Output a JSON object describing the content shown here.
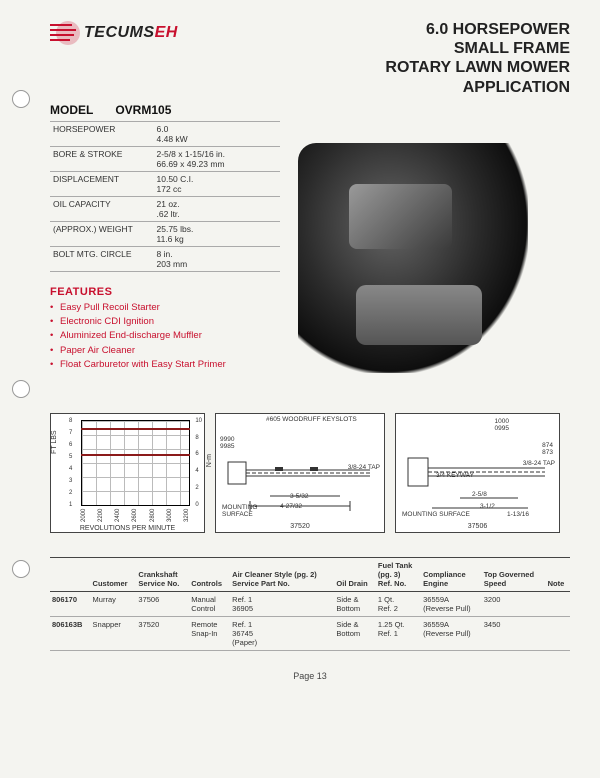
{
  "brand": {
    "name_black": "TECUMS",
    "name_red": "EH",
    "logo_color": "#c8102e"
  },
  "title": {
    "line1": "6.0 HORSEPOWER",
    "line2": "SMALL FRAME",
    "line3": "ROTARY LAWN MOWER",
    "line4": "APPLICATION"
  },
  "model": {
    "label": "MODEL",
    "value": "OVRM105"
  },
  "spec_table": {
    "rows": [
      {
        "label": "HORSEPOWER",
        "v1": "6.0",
        "v2": "4.48 kW"
      },
      {
        "label": "BORE & STROKE",
        "v1": "2-5/8 x 1-15/16 in.",
        "v2": "66.69 x 49.23 mm"
      },
      {
        "label": "DISPLACEMENT",
        "v1": "10.50 C.I.",
        "v2": "172 cc"
      },
      {
        "label": "OIL CAPACITY",
        "v1": "21 oz.",
        "v2": ".62 ltr."
      },
      {
        "label": "(APPROX.) WEIGHT",
        "v1": "25.75 lbs.",
        "v2": "11.6 kg"
      },
      {
        "label": "BOLT MTG. CIRCLE",
        "v1": "8 in.",
        "v2": "203 mm"
      }
    ]
  },
  "features": {
    "heading": "FEATURES",
    "items": [
      "Easy Pull Recoil Starter",
      "Electronic CDI Ignition",
      "Aluminized End-discharge Muffler",
      "Paper Air Cleaner",
      "Float Carburetor with Easy Start Primer"
    ],
    "color": "#c8102e"
  },
  "chart": {
    "type": "line",
    "y_left_label": "FT LBS",
    "y_right_label": "N-m",
    "x_label": "REVOLUTIONS PER MINUTE",
    "x_ticks": [
      "2000",
      "2200",
      "2400",
      "2600",
      "2800",
      "3000",
      "3200"
    ],
    "y_left_ticks": [
      "8",
      "7",
      "6",
      "5",
      "4",
      "3",
      "2",
      "1"
    ],
    "y_right_ticks": [
      "10",
      "8",
      "6",
      "4",
      "2",
      "0"
    ],
    "line_color": "#8b1a1a",
    "grid_color": "#bbbbbb",
    "background_color": "#ffffff",
    "xlim": [
      2000,
      3200
    ],
    "ylim_left": [
      1,
      8
    ],
    "ylim_right": [
      0,
      10
    ]
  },
  "shaft_diagram_1": {
    "part_no": "37520",
    "labels": {
      "keyslot": "#605 WOODRUFF KEYSLOTS",
      "diam": "9990\n9985",
      "tap": "3/8-24 TAP",
      "len1": "4-27/32",
      "len2": "3-5/32",
      "mount": "MOUNTING\nSURFACE"
    }
  },
  "shaft_diagram_2": {
    "part_no": "37506",
    "labels": {
      "diam": "1000\n0995",
      "d1": "874\n873",
      "tap": "3/8-24 TAP",
      "note": "3/4 KEYWAY",
      "len1": "2-5/8",
      "len2": "3-1/2",
      "len3": "1-13/16",
      "mount": "MOUNTING SURFACE"
    }
  },
  "apps_table": {
    "columns": [
      "",
      "Customer",
      "Crankshaft\nService No.",
      "Controls",
      "Air Cleaner Style (pg. 2)\nService Part No.",
      "Oil Drain",
      "Fuel Tank\n(pg. 3)\nRef. No.",
      "Compliance\nEngine",
      "Top Governed\nSpeed",
      "Note"
    ],
    "rows": [
      {
        "id": "806170",
        "customer": "Murray",
        "crank": "37506",
        "controls": "Manual\nControl",
        "aircleaner": "Ref. 1\n36905",
        "oildrain": "Side &\nBottom",
        "fueltank": "1 Qt.\nRef. 2",
        "compliance": "36559A\n(Reverse Pull)",
        "speed": "3200",
        "note": ""
      },
      {
        "id": "806163B",
        "customer": "Snapper",
        "crank": "37520",
        "controls": "Remote\nSnap-In",
        "aircleaner": "Ref. 1\n36745\n(Paper)",
        "oildrain": "Side &\nBottom",
        "fueltank": "1.25 Qt.\nRef. 1",
        "compliance": "36559A\n(Reverse Pull)",
        "speed": "3450",
        "note": ""
      }
    ]
  },
  "page_number": "Page 13"
}
